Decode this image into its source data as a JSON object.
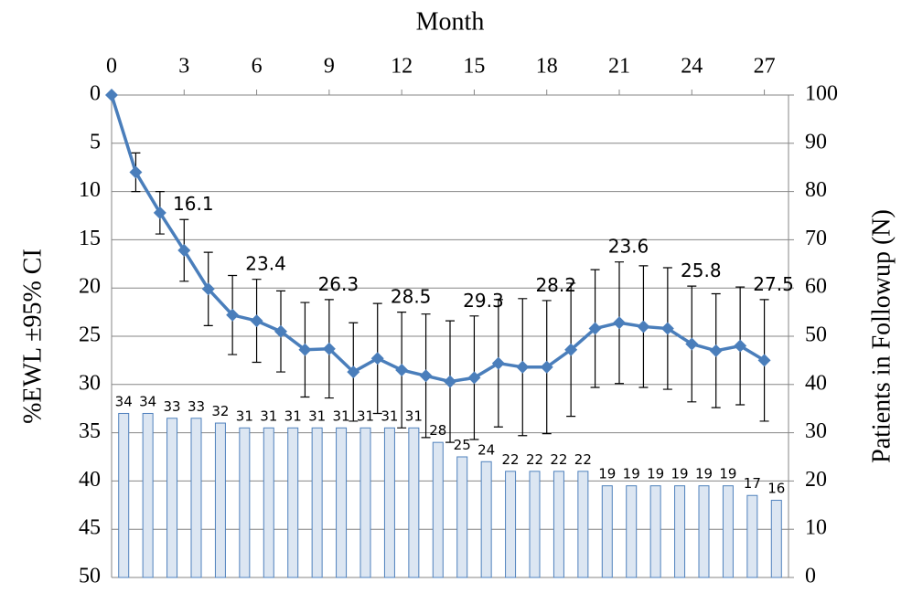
{
  "chart_data": {
    "type": "combo",
    "x_label": "Month",
    "y_label": "%EWL ±95% CI",
    "y2_label": "Patients in Followup (N)",
    "x": [
      0,
      1,
      2,
      3,
      4,
      5,
      6,
      7,
      8,
      9,
      10,
      11,
      12,
      13,
      14,
      15,
      16,
      17,
      18,
      19,
      20,
      21,
      22,
      23,
      24,
      25,
      26,
      27
    ],
    "xlim": [
      0,
      28
    ],
    "xticks": [
      0,
      3,
      6,
      9,
      12,
      15,
      18,
      21,
      24,
      27
    ],
    "xaxis_position": "top",
    "ylim": [
      0,
      50
    ],
    "yticks": [
      0,
      5,
      10,
      15,
      20,
      25,
      30,
      35,
      40,
      45,
      50
    ],
    "y_reversed": true,
    "y2lim": [
      0,
      100
    ],
    "y2ticks": [
      0,
      10,
      20,
      30,
      40,
      50,
      60,
      70,
      80,
      90,
      100
    ],
    "grid": true,
    "series": [
      {
        "type": "bar",
        "axis": "y2",
        "color": "#dce6f2",
        "edge_color": "#4f81bd",
        "values": [
          34,
          34,
          33,
          33,
          32,
          31,
          31,
          31,
          31,
          31,
          31,
          31,
          31,
          28,
          25,
          24,
          22,
          22,
          22,
          22,
          19,
          19,
          19,
          19,
          19,
          19,
          17,
          16
        ]
      },
      {
        "type": "line",
        "axis": "y",
        "color": "#4a7ebb",
        "values": [
          0,
          8,
          12.2,
          16.1,
          20.1,
          22.8,
          23.4,
          24.5,
          26.4,
          26.3,
          28.7,
          27.3,
          28.5,
          29.1,
          29.7,
          29.3,
          27.8,
          28.2,
          28.2,
          26.4,
          24.2,
          23.6,
          24.0,
          24.2,
          25.8,
          26.5,
          26.0,
          27.5
        ],
        "errors": [
          0,
          2,
          2.2,
          3.2,
          3.8,
          4.1,
          4.3,
          4.2,
          4.9,
          5.1,
          5.1,
          5.7,
          6,
          6.4,
          6.3,
          6.4,
          6.6,
          7.1,
          6.9,
          6.9,
          6.1,
          6.3,
          6.3,
          6.3,
          6,
          5.9,
          6.1,
          6.3
        ],
        "value_labels": [
          null,
          null,
          null,
          "16.1",
          null,
          null,
          "23.4",
          null,
          null,
          "26.3",
          null,
          null,
          "28.5",
          null,
          null,
          "29.3",
          null,
          null,
          "28.2",
          null,
          null,
          "23.6",
          null,
          null,
          "25.8",
          null,
          null,
          "27.5"
        ]
      }
    ]
  }
}
